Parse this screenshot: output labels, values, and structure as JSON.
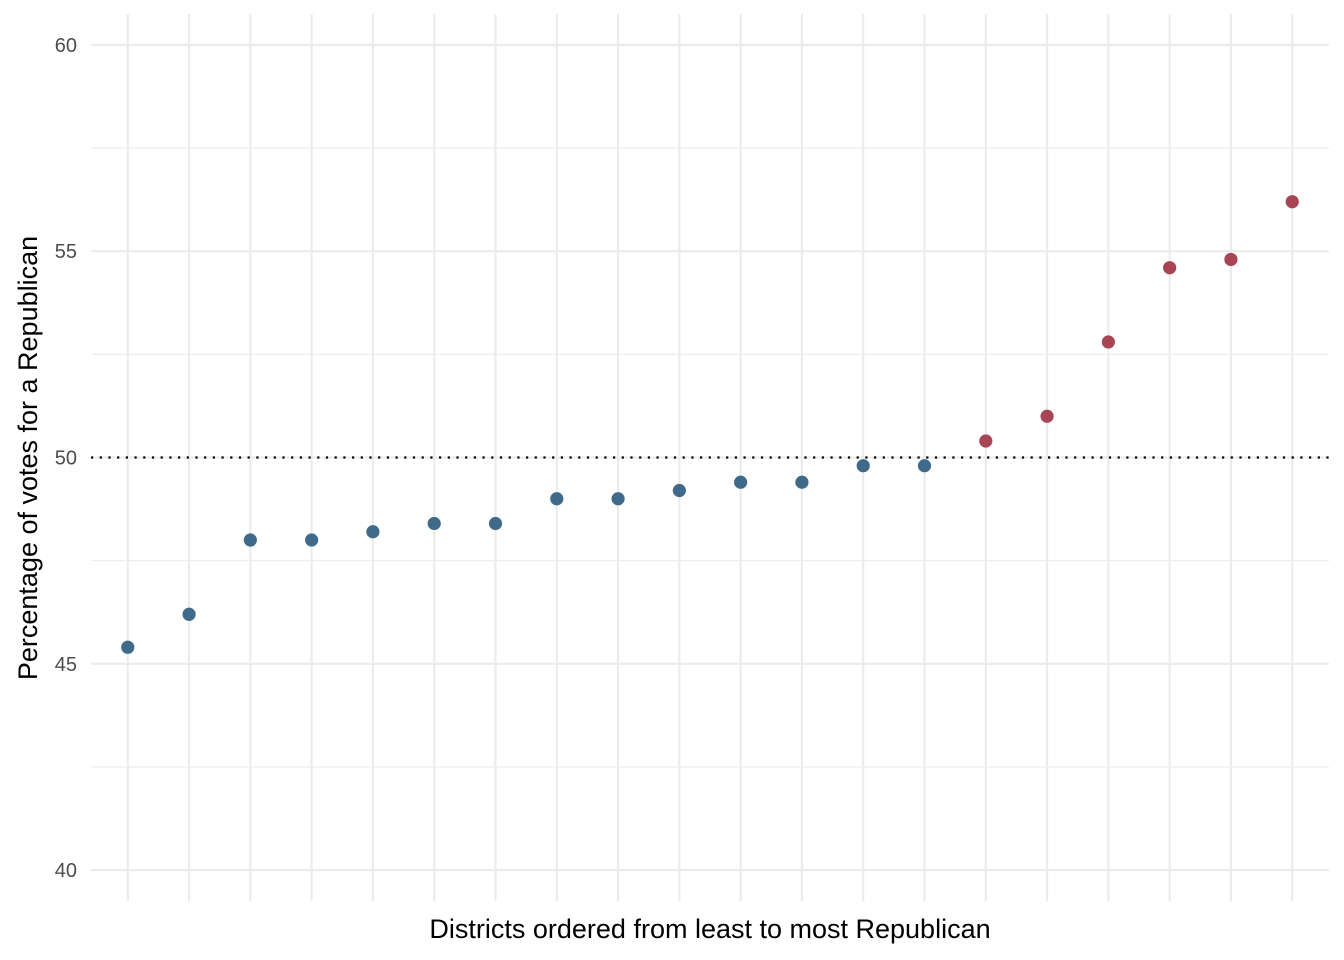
{
  "chart_data": {
    "type": "scatter",
    "title": "",
    "xlabel": "Districts ordered from least to most Republican",
    "ylabel": "Percentage of votes for a Republican",
    "ylim": [
      39.25,
      60.75
    ],
    "yticks": [
      40,
      45,
      50,
      55,
      60
    ],
    "yticks_minor": [
      42.5,
      47.5,
      52.5,
      57.5
    ],
    "xlim": [
      0.4,
      20.6
    ],
    "x_tick_labels_shown": false,
    "grid": true,
    "legend": "none",
    "reference_line": {
      "y": 50,
      "style": "dotted",
      "color": "#000000"
    },
    "colors": {
      "democrat": "#3f6a8a",
      "republican": "#a84554"
    },
    "x": [
      1,
      2,
      3,
      4,
      5,
      6,
      7,
      8,
      9,
      10,
      11,
      12,
      13,
      14,
      15,
      16,
      17,
      18,
      19,
      20
    ],
    "values": [
      45.4,
      46.2,
      48.0,
      48.0,
      48.2,
      48.4,
      48.4,
      49.0,
      49.0,
      49.2,
      49.4,
      49.4,
      49.8,
      49.8,
      50.4,
      51.0,
      52.8,
      54.6,
      54.8,
      56.2
    ]
  }
}
